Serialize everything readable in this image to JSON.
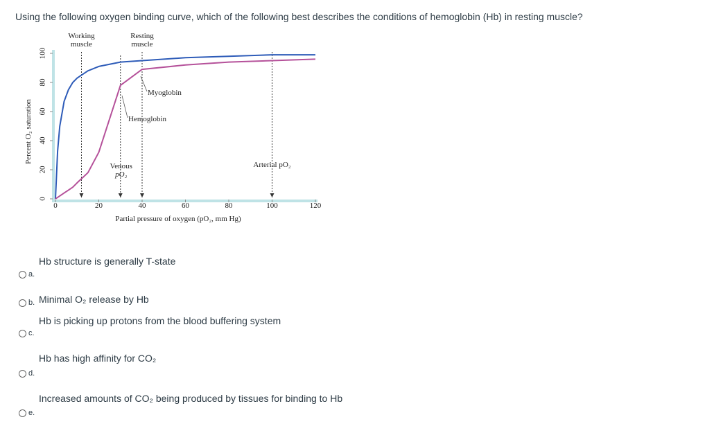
{
  "question": "Using the following oxygen binding curve, which of the following best describes the conditions of hemoglobin (Hb) in resting muscle?",
  "chart_data": {
    "type": "line",
    "x_label": "Partial pressure of oxygen (pO₂, mm Hg)",
    "y_label": "Percent O₂ saturation",
    "x": [
      0,
      1,
      2,
      4,
      6,
      8,
      10,
      15,
      20,
      30,
      40,
      60,
      80,
      100,
      120
    ],
    "series": [
      {
        "name": "Myoglobin",
        "color": "#2d5bb8",
        "values": [
          0,
          33,
          50,
          67,
          75,
          80,
          83,
          88,
          91,
          94,
          95,
          97,
          98,
          99,
          99
        ]
      },
      {
        "name": "Hemoglobin",
        "color": "#b5519a",
        "values": [
          0,
          1,
          2,
          4,
          6,
          8,
          11,
          18,
          32,
          78,
          89,
          92,
          94,
          95,
          96
        ]
      }
    ],
    "xlim": [
      0,
      120
    ],
    "xticks": [
      0,
      20,
      40,
      60,
      80,
      100,
      120
    ],
    "ylim": [
      0,
      100
    ],
    "yticks": [
      0,
      20,
      40,
      60,
      80,
      100
    ],
    "grid": false,
    "reference_lines": [
      {
        "label_lines": [
          "Working",
          "muscle"
        ],
        "x": 12
      },
      {
        "label_lines": [
          "Venous",
          "pO₂"
        ],
        "x": 30
      },
      {
        "label_lines": [
          "Resting",
          "muscle"
        ],
        "x": 40
      },
      {
        "label_lines": [
          "Arterial pO₂"
        ],
        "x": 100
      }
    ]
  },
  "options": [
    {
      "letter": "a.",
      "text": "Hb structure is generally T-state"
    },
    {
      "letter": "b.",
      "text": "Minimal O₂ release by Hb"
    },
    {
      "letter": "c.",
      "text": "Hb is picking up protons from the blood buffering system"
    },
    {
      "letter": "d.",
      "text": "Hb has high affinity for CO₂"
    },
    {
      "letter": "e.",
      "text": "Increased amounts of CO₂ being produced by tissues for binding to Hb"
    }
  ]
}
